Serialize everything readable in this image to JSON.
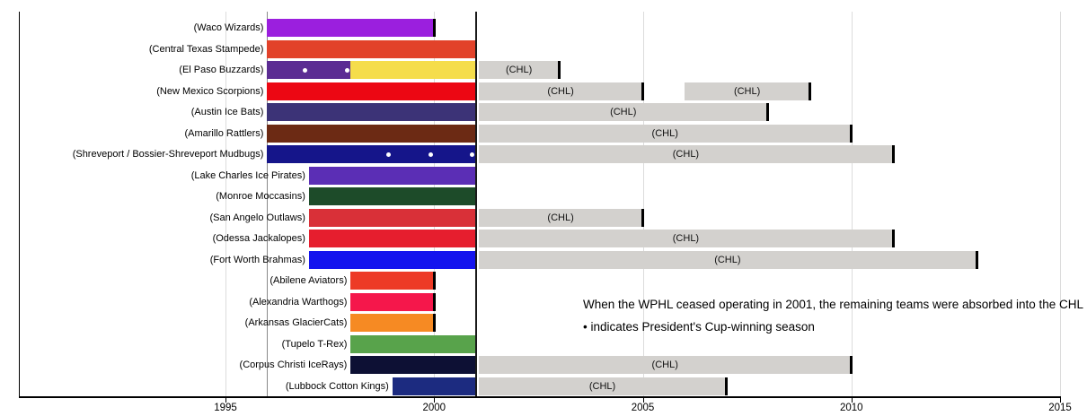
{
  "chart_data": {
    "type": "bar",
    "variant": "horizontal-gantt-timeline",
    "title": "",
    "xlabel": "",
    "ylabel": "",
    "xlim": [
      1990,
      2015
    ],
    "x_ticks": [
      1995,
      2000,
      2005,
      2010,
      2015
    ],
    "grid": "vertical-light",
    "legend_note_1": "When the WPHL ceased operating in 2001, the remaining teams were absorbed into the CHL",
    "legend_note_2": "• indicates President's Cup-winning season",
    "chl_label": "(CHL)",
    "colors": {
      "chl_bar": "#D3D1CE",
      "gridline": "#DCDCDC",
      "wphl_start_line_1996": "#8A8A8A",
      "wphl_end_line_2001": "#1A1A1A",
      "cup_dot": "#FFFFFF",
      "bar_end_tick": "#000000"
    },
    "reference_lines": [
      {
        "year": 1996,
        "color": "#8A8A8A",
        "width": 1
      },
      {
        "year": 2001,
        "color": "#1A1A1A",
        "width": 2
      }
    ],
    "teams": [
      {
        "label": "(Waco Wizards)",
        "segments": [
          {
            "start": 1996,
            "end": 2000,
            "color": "#9B1FDE",
            "end_tick": true
          }
        ],
        "cup_dot_years": []
      },
      {
        "label": "(Central Texas Stampede)",
        "segments": [
          {
            "start": 1996,
            "end": 2001,
            "color": "#E2422A"
          }
        ],
        "cup_dot_years": []
      },
      {
        "label": "(El Paso Buzzards)",
        "segments": [
          {
            "start": 1996,
            "end": 1998,
            "color": "#5B2C93"
          },
          {
            "start": 1998,
            "end": 2001,
            "color": "#F5DD4B"
          },
          {
            "start": 2001,
            "end": 2003,
            "chl": true,
            "end_tick": true
          }
        ],
        "cup_dot_years": [
          1997,
          1998
        ]
      },
      {
        "label": "(New Mexico Scorpions)",
        "segments": [
          {
            "start": 1996,
            "end": 2001,
            "color": "#EC0713"
          },
          {
            "start": 2001,
            "end": 2005,
            "chl": true,
            "end_tick": true
          },
          {
            "start": 2006,
            "end": 2009,
            "chl": true,
            "end_tick": true
          }
        ],
        "cup_dot_years": []
      },
      {
        "label": "(Austin Ice Bats)",
        "segments": [
          {
            "start": 1996,
            "end": 2001,
            "color": "#3C3377"
          },
          {
            "start": 2001,
            "end": 2008,
            "chl": true,
            "end_tick": true
          }
        ],
        "cup_dot_years": []
      },
      {
        "label": "(Amarillo Rattlers)",
        "segments": [
          {
            "start": 1996,
            "end": 2001,
            "color": "#6C2A14"
          },
          {
            "start": 2001,
            "end": 2010,
            "chl": true,
            "end_tick": true
          }
        ],
        "cup_dot_years": []
      },
      {
        "label": "(Shreveport / Bossier-Shreveport Mudbugs)",
        "segments": [
          {
            "start": 1996,
            "end": 2001,
            "color": "#15158A"
          },
          {
            "start": 2001,
            "end": 2011,
            "chl": true,
            "end_tick": true
          }
        ],
        "cup_dot_years": [
          1999,
          2000,
          2001
        ]
      },
      {
        "label": "(Lake Charles Ice Pirates)",
        "segments": [
          {
            "start": 1997,
            "end": 2001,
            "color": "#5B2EB5"
          }
        ],
        "cup_dot_years": []
      },
      {
        "label": "(Monroe Moccasins)",
        "segments": [
          {
            "start": 1997,
            "end": 2001,
            "color": "#1D4B29"
          }
        ],
        "cup_dot_years": []
      },
      {
        "label": "(San Angelo Outlaws)",
        "segments": [
          {
            "start": 1997,
            "end": 2001,
            "color": "#D93038"
          },
          {
            "start": 2001,
            "end": 2005,
            "chl": true,
            "end_tick": true
          }
        ],
        "cup_dot_years": []
      },
      {
        "label": "(Odessa Jackalopes)",
        "segments": [
          {
            "start": 1997,
            "end": 2001,
            "color": "#E61E2E"
          },
          {
            "start": 2001,
            "end": 2011,
            "chl": true,
            "end_tick": true
          }
        ],
        "cup_dot_years": []
      },
      {
        "label": "(Fort Worth Brahmas)",
        "segments": [
          {
            "start": 1997,
            "end": 2001,
            "color": "#1414EE"
          },
          {
            "start": 2001,
            "end": 2013,
            "chl": true,
            "end_tick": true
          }
        ],
        "cup_dot_years": []
      },
      {
        "label": "(Abilene Aviators)",
        "segments": [
          {
            "start": 1998,
            "end": 2000,
            "color": "#ED3A26",
            "end_tick": true
          }
        ],
        "cup_dot_years": []
      },
      {
        "label": "(Alexandria Warthogs)",
        "segments": [
          {
            "start": 1998,
            "end": 2000,
            "color": "#F5174B",
            "end_tick": true
          }
        ],
        "cup_dot_years": []
      },
      {
        "label": "(Arkansas GlacierCats)",
        "segments": [
          {
            "start": 1998,
            "end": 2000,
            "color": "#F68A23",
            "end_tick": true
          }
        ],
        "cup_dot_years": []
      },
      {
        "label": "(Tupelo T-Rex)",
        "segments": [
          {
            "start": 1998,
            "end": 2001,
            "color": "#58A34B"
          }
        ],
        "cup_dot_years": []
      },
      {
        "label": "(Corpus Christi IceRays)",
        "segments": [
          {
            "start": 1998,
            "end": 2001,
            "color": "#0D1034"
          },
          {
            "start": 2001,
            "end": 2010,
            "chl": true,
            "end_tick": true
          }
        ],
        "cup_dot_years": []
      },
      {
        "label": "(Lubbock Cotton Kings)",
        "segments": [
          {
            "start": 1999,
            "end": 2001,
            "color": "#1C2B80"
          },
          {
            "start": 2001,
            "end": 2007,
            "chl": true,
            "end_tick": true
          }
        ],
        "cup_dot_years": []
      }
    ]
  }
}
